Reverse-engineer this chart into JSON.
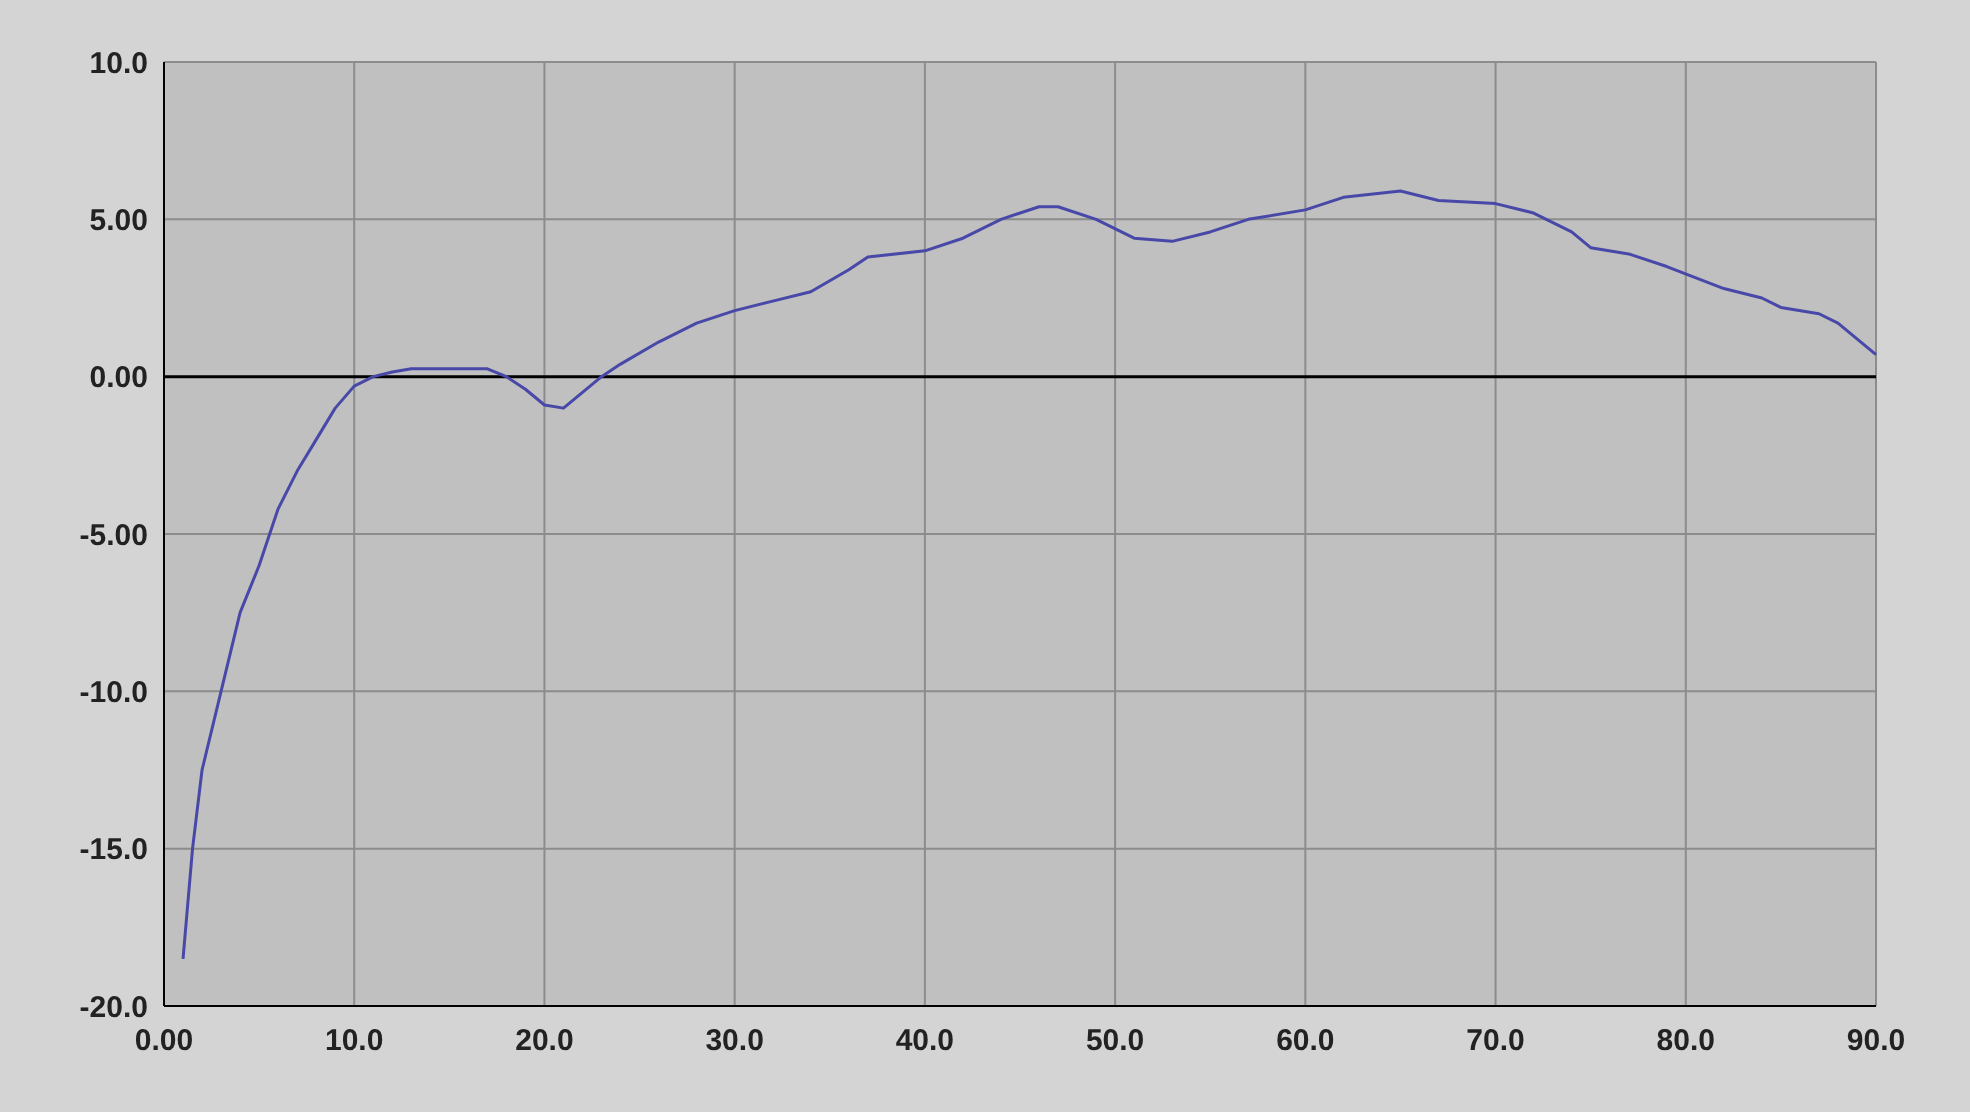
{
  "chart_data": {
    "type": "line",
    "x": [
      1,
      1.5,
      2,
      3,
      4,
      5,
      6,
      7,
      8,
      9,
      10,
      11,
      12,
      13,
      15,
      17,
      18,
      19,
      20,
      21,
      22,
      23,
      24,
      26,
      28,
      30,
      32,
      34,
      36,
      37,
      40,
      42,
      44,
      46,
      47,
      49,
      51,
      53,
      55,
      57,
      60,
      62,
      65,
      67,
      70,
      72,
      74,
      75,
      77,
      79,
      82,
      84,
      85,
      87,
      88,
      89,
      90
    ],
    "series": [
      {
        "color": "#4848a8",
        "values": [
          -18.5,
          -15,
          -12.5,
          -10,
          -7.5,
          -6,
          -4.2,
          -3,
          -2,
          -1,
          -0.3,
          0,
          0.15,
          0.25,
          0.25,
          0.25,
          0,
          -0.4,
          -0.9,
          -1,
          -0.5,
          0,
          0.4,
          1.1,
          1.7,
          2.1,
          2.4,
          2.7,
          3.4,
          3.8,
          4,
          4.4,
          5,
          5.4,
          5.4,
          5,
          4.4,
          4.3,
          4.6,
          5,
          5.3,
          5.7,
          5.9,
          5.6,
          5.5,
          5.2,
          4.6,
          4.1,
          3.9,
          3.5,
          2.8,
          2.5,
          2.2,
          2,
          1.7,
          1.2,
          0.7
        ]
      }
    ],
    "xlim": [
      0,
      90
    ],
    "ylim": [
      -20,
      10
    ],
    "xticks": [
      {
        "value": 0,
        "label": "0.00"
      },
      {
        "value": 10,
        "label": "10.0"
      },
      {
        "value": 20,
        "label": "20.0"
      },
      {
        "value": 30,
        "label": "30.0"
      },
      {
        "value": 40,
        "label": "40.0"
      },
      {
        "value": 50,
        "label": "50.0"
      },
      {
        "value": 60,
        "label": "60.0"
      },
      {
        "value": 70,
        "label": "70.0"
      },
      {
        "value": 80,
        "label": "80.0"
      },
      {
        "value": 90,
        "label": "90.0"
      }
    ],
    "yticks": [
      {
        "value": 10,
        "label": "10.0"
      },
      {
        "value": 5,
        "label": "5.00"
      },
      {
        "value": 0,
        "label": "0.00"
      },
      {
        "value": -5,
        "label": "-5.00"
      },
      {
        "value": -10,
        "label": "-10.0"
      },
      {
        "value": -15,
        "label": "-15.0"
      },
      {
        "value": -20,
        "label": "-20.0"
      }
    ],
    "grid": true,
    "ref_lines": [
      {
        "axis": "y",
        "value": 0,
        "color": "#000000"
      }
    ]
  }
}
